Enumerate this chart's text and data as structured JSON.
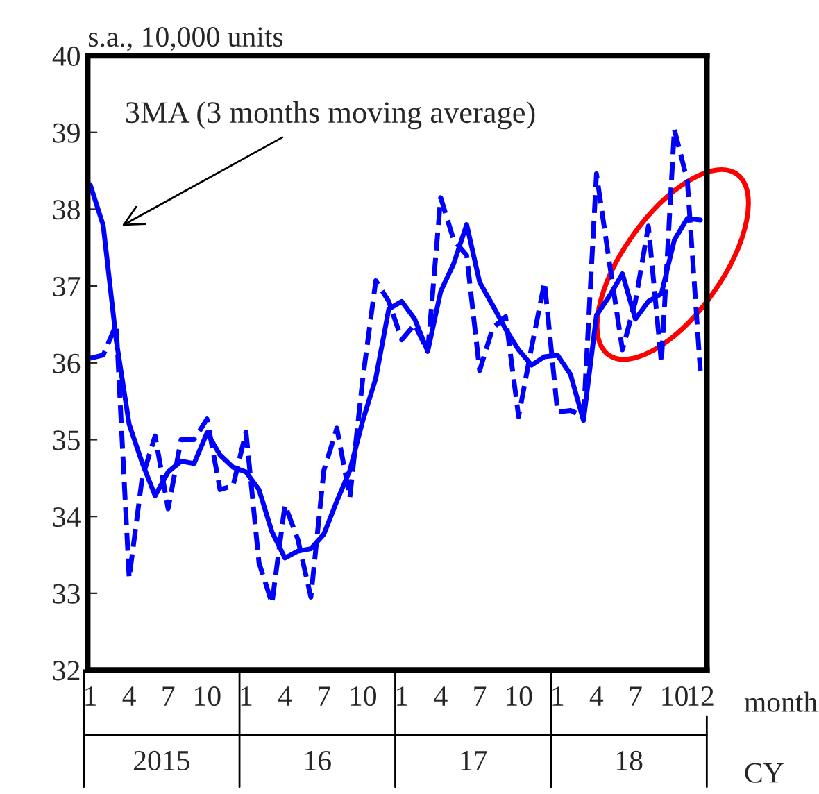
{
  "chart_data": {
    "type": "line",
    "ylabel": "s.a., 10,000 units",
    "xlabel": "month",
    "categories": [
      "1",
      null,
      null,
      "4",
      null,
      null,
      "7",
      null,
      null,
      "10",
      null,
      null,
      "1",
      null,
      null,
      "4",
      null,
      null,
      "7",
      null,
      null,
      "10",
      null,
      null,
      "1",
      null,
      null,
      "4",
      null,
      null,
      "7",
      null,
      null,
      "10",
      null,
      null,
      "1",
      null,
      null,
      "4",
      null,
      null,
      "7",
      null,
      null,
      "10",
      null,
      "12"
    ],
    "series": [
      {
        "color": "#0000ff",
        "line_style": "solid",
        "values": [
          38.32,
          37.79,
          36.3,
          35.2,
          34.7,
          34.27,
          34.58,
          34.72,
          34.69,
          35.09,
          34.8,
          34.64,
          34.58,
          34.35,
          33.8,
          33.46,
          33.55,
          33.58,
          33.77,
          34.2,
          34.6,
          35.25,
          35.8,
          36.7,
          36.8,
          36.57,
          36.15,
          36.93,
          37.29,
          37.8,
          37.05,
          36.75,
          36.44,
          36.17,
          35.97,
          36.08,
          36.1,
          35.85,
          35.25,
          36.62,
          36.87,
          37.16,
          36.57,
          36.8,
          36.9,
          37.6,
          37.88,
          37.86
        ]
      },
      {
        "color": "#0000ff",
        "line_style": "dashed",
        "values": [
          36.06,
          36.1,
          36.5,
          33.2,
          34.5,
          35.05,
          34.1,
          35.0,
          35.0,
          35.27,
          34.35,
          34.4,
          35.1,
          33.4,
          32.87,
          34.15,
          33.7,
          32.95,
          34.6,
          35.15,
          34.25,
          35.8,
          37.07,
          36.8,
          36.3,
          36.5,
          36.15,
          38.15,
          37.6,
          37.4,
          35.9,
          36.45,
          36.6,
          35.3,
          36.2,
          37.05,
          35.36,
          35.38,
          35.3,
          38.46,
          37.3,
          36.17,
          36.8,
          37.78,
          36.0,
          39.04,
          38.37,
          35.9
        ]
      }
    ],
    "ylim": [
      32,
      40
    ],
    "yticks": [
      32,
      33,
      34,
      35,
      36,
      37,
      38,
      39,
      40
    ],
    "annotations": [
      "3MA (3 months moving average)",
      "2015",
      "16",
      "17",
      "18",
      "CY"
    ]
  }
}
